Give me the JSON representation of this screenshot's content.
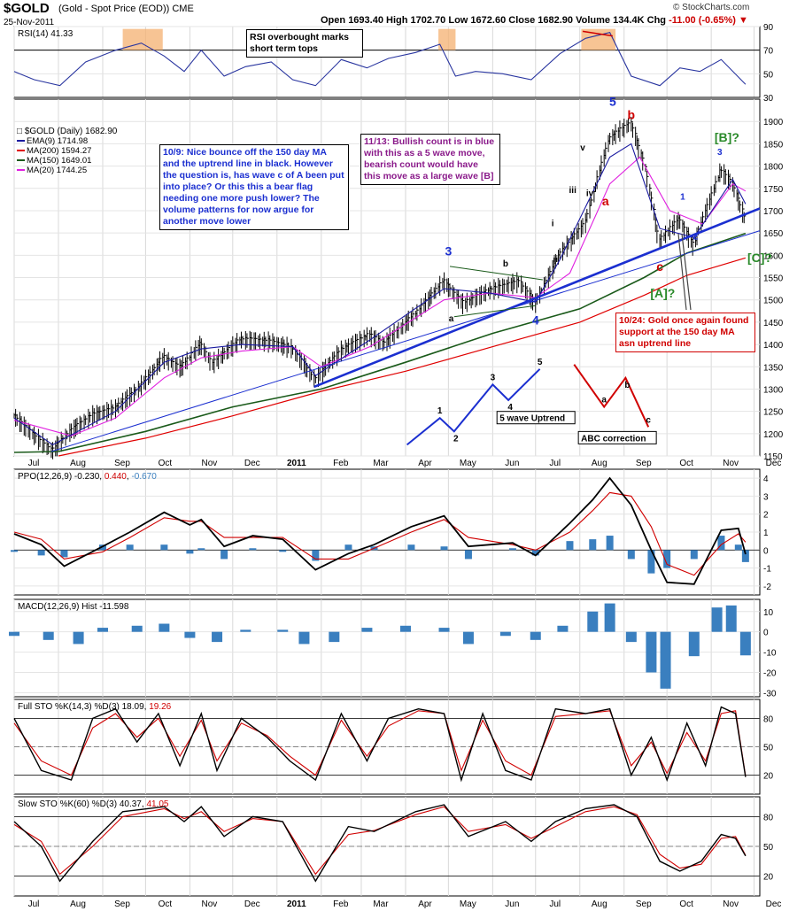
{
  "header": {
    "symbol": "$GOLD",
    "description": "(Gold - Spot Price (EOD))  CME",
    "date": "25-Nov-2011",
    "open_label": "Open",
    "open": "1693.40",
    "high_label": "High",
    "high": "1702.70",
    "low_label": "Low",
    "low": "1672.60",
    "close_label": "Close",
    "close": "1682.90",
    "volume_label": "Volume",
    "volume": "134.4K",
    "chg_label": "Chg",
    "chg": "-11.00 (-0.65%)",
    "copyright": "© StockCharts.com"
  },
  "colors": {
    "price_bars": "#000000",
    "ema9": "#1a1aa0",
    "ma200": "#e00000",
    "ma150": "#1a5a1a",
    "ma20": "#e020e0",
    "trendline": "#1b2fd0",
    "rsi": "#2a36a0",
    "ppo_line": "#000000",
    "ppo_signal": "#d00000",
    "histogram": "#3a7fbf",
    "sto_k": "#000000",
    "sto_d": "#d00000",
    "bullish_count": "#1b2fd0",
    "bearish_count": "#d00000",
    "alt_count": "#2a8a2a",
    "highlight_box": "#f4b070"
  },
  "chart_data": {
    "type": "line",
    "x_axis": {
      "months": [
        "Jul",
        "Aug",
        "Sep",
        "Oct",
        "Nov",
        "Dec",
        "2011",
        "Feb",
        "Mar",
        "Apr",
        "May",
        "Jun",
        "Jul",
        "Aug",
        "Sep",
        "Oct",
        "Nov",
        "Dec"
      ],
      "range": [
        "2010-07-01",
        "2011-12-05"
      ]
    },
    "rsi_panel": {
      "label": "RSI(14) 41.33",
      "ylim": [
        30,
        90
      ],
      "ticks": [
        90,
        70,
        50,
        30
      ],
      "x": [
        "2010-07-01",
        "2010-07-15",
        "2010-08-02",
        "2010-08-20",
        "2010-09-10",
        "2010-09-28",
        "2010-10-14",
        "2010-10-28",
        "2010-11-09",
        "2010-11-25",
        "2010-12-10",
        "2010-12-28",
        "2011-01-12",
        "2011-01-28",
        "2011-02-15",
        "2011-03-05",
        "2011-03-20",
        "2011-04-08",
        "2011-04-25",
        "2011-05-06",
        "2011-05-20",
        "2011-06-08",
        "2011-06-28",
        "2011-07-18",
        "2011-08-05",
        "2011-08-22",
        "2011-09-06",
        "2011-09-26",
        "2011-10-10",
        "2011-10-24",
        "2011-11-08",
        "2011-11-25"
      ],
      "values": [
        52,
        45,
        40,
        60,
        70,
        76,
        65,
        52,
        70,
        48,
        56,
        60,
        45,
        40,
        62,
        55,
        63,
        68,
        75,
        48,
        52,
        50,
        45,
        67,
        80,
        85,
        48,
        40,
        55,
        52,
        62,
        41
      ]
    },
    "price_panel": {
      "title": "$GOLD (Daily) 1682.90",
      "ylim": [
        1150,
        1950
      ],
      "ticks": [
        1150,
        1200,
        1250,
        1300,
        1350,
        1400,
        1450,
        1500,
        1550,
        1600,
        1650,
        1700,
        1750,
        1800,
        1850,
        1900
      ],
      "legend": [
        {
          "label": "EMA(9) 1714.98",
          "color": "#1a1aa0"
        },
        {
          "label": "MA(200) 1594.27",
          "color": "#e00000"
        },
        {
          "label": "MA(150) 1649.01",
          "color": "#1a5a1a"
        },
        {
          "label": "MA(20) 1744.25",
          "color": "#e020e0"
        }
      ],
      "close": {
        "x": [
          "2010-07-01",
          "2010-07-12",
          "2010-07-28",
          "2010-08-10",
          "2010-08-25",
          "2010-09-10",
          "2010-09-28",
          "2010-10-14",
          "2010-10-26",
          "2010-11-09",
          "2010-11-17",
          "2010-12-07",
          "2010-12-28",
          "2011-01-12",
          "2011-01-28",
          "2011-02-15",
          "2011-03-07",
          "2011-03-17",
          "2011-04-08",
          "2011-04-28",
          "2011-05-12",
          "2011-05-30",
          "2011-06-20",
          "2011-07-01",
          "2011-07-18",
          "2011-08-05",
          "2011-08-22",
          "2011-09-06",
          "2011-09-16",
          "2011-09-26",
          "2011-10-10",
          "2011-10-20",
          "2011-11-08",
          "2011-11-16",
          "2011-11-25"
        ],
        "values": [
          1240,
          1205,
          1160,
          1205,
          1240,
          1255,
          1305,
          1370,
          1345,
          1400,
          1355,
          1410,
          1405,
          1390,
          1320,
          1385,
          1420,
          1400,
          1465,
          1540,
          1490,
          1520,
          1540,
          1490,
          1600,
          1670,
          1860,
          1895,
          1800,
          1630,
          1680,
          1620,
          1790,
          1760,
          1683
        ]
      },
      "ema9": {
        "x": [
          "2010-07-01",
          "2010-07-28",
          "2010-09-10",
          "2010-10-14",
          "2010-11-09",
          "2010-12-07",
          "2011-01-12",
          "2011-01-28",
          "2011-03-07",
          "2011-04-28",
          "2011-05-30",
          "2011-07-01",
          "2011-07-18",
          "2011-08-22",
          "2011-09-06",
          "2011-09-26",
          "2011-10-20",
          "2011-11-16",
          "2011-11-25"
        ],
        "values": [
          1235,
          1175,
          1250,
          1360,
          1390,
          1400,
          1395,
          1330,
          1410,
          1525,
          1515,
          1495,
          1590,
          1820,
          1850,
          1660,
          1640,
          1770,
          1715
        ]
      },
      "ma20": {
        "x": [
          "2010-07-01",
          "2010-08-10",
          "2010-09-10",
          "2010-10-14",
          "2010-11-09",
          "2010-12-07",
          "2011-01-12",
          "2011-02-01",
          "2011-03-07",
          "2011-04-28",
          "2011-05-30",
          "2011-07-01",
          "2011-07-25",
          "2011-08-22",
          "2011-09-12",
          "2011-10-03",
          "2011-10-26",
          "2011-11-16",
          "2011-11-25"
        ],
        "values": [
          1230,
          1195,
          1235,
          1325,
          1370,
          1385,
          1395,
          1350,
          1395,
          1500,
          1515,
          1505,
          1560,
          1760,
          1820,
          1700,
          1670,
          1760,
          1744
        ]
      },
      "ma150": {
        "x": [
          "2010-07-01",
          "2010-08-01",
          "2010-10-01",
          "2010-12-01",
          "2011-02-01",
          "2011-04-01",
          "2011-06-01",
          "2011-08-01",
          "2011-09-15",
          "2011-10-15",
          "2011-11-25"
        ],
        "values": [
          1158,
          1160,
          1205,
          1260,
          1300,
          1360,
          1425,
          1480,
          1550,
          1605,
          1649
        ]
      },
      "ma200": {
        "x": [
          "2010-08-01",
          "2010-10-01",
          "2010-12-01",
          "2011-02-01",
          "2011-04-01",
          "2011-06-01",
          "2011-08-01",
          "2011-09-15",
          "2011-10-15",
          "2011-11-25"
        ],
        "values": [
          1150,
          1190,
          1240,
          1295,
          1340,
          1395,
          1450,
          1510,
          1555,
          1594
        ]
      },
      "trendlines": [
        {
          "name": "thick blue uptrend",
          "x": [
            "2011-01-27",
            "2011-12-05"
          ],
          "values": [
            1305,
            1705
          ]
        },
        {
          "name": "thin blue uptrend",
          "x": [
            "2010-07-27",
            "2011-12-05"
          ],
          "values": [
            1160,
            1655
          ]
        },
        {
          "name": "green triangle top",
          "x": [
            "2011-05-02",
            "2011-07-06"
          ],
          "values": [
            1575,
            1545
          ]
        },
        {
          "name": "green triangle bottom",
          "x": [
            "2011-05-05",
            "2011-07-01"
          ],
          "values": [
            1462,
            1487
          ]
        }
      ],
      "wave_labels": [
        {
          "text": "3",
          "x": "2011-05-01",
          "y": 1600,
          "color": "#1b2fd0",
          "big": true
        },
        {
          "text": "4",
          "x": "2011-07-01",
          "y": 1445,
          "color": "#1b2fd0",
          "big": true
        },
        {
          "text": "5",
          "x": "2011-08-24",
          "y": 1935,
          "color": "#1b2fd0",
          "big": true
        },
        {
          "text": "a",
          "x": "2011-05-03",
          "y": 1452,
          "color": "#000000"
        },
        {
          "text": "b",
          "x": "2011-06-10",
          "y": 1575,
          "color": "#000000"
        },
        {
          "text": "i",
          "x": "2011-07-13",
          "y": 1665,
          "color": "#000000"
        },
        {
          "text": "ii",
          "x": "2011-07-15",
          "y": 1585,
          "color": "#000000"
        },
        {
          "text": "iii",
          "x": "2011-07-27",
          "y": 1740,
          "color": "#000000"
        },
        {
          "text": "iv",
          "x": "2011-08-08",
          "y": 1733,
          "color": "#000000"
        },
        {
          "text": "v",
          "x": "2011-08-03",
          "y": 1835,
          "color": "#000000"
        },
        {
          "text": "a",
          "x": "2011-08-19",
          "y": 1712,
          "color": "#d00000",
          "big": true
        },
        {
          "text": "b",
          "x": "2011-09-06",
          "y": 1905,
          "color": "#d00000",
          "big": true
        },
        {
          "text": "c",
          "x": "2011-09-26",
          "y": 1565,
          "color": "#d00000",
          "big": true
        },
        {
          "text": "1",
          "x": "2011-10-12",
          "y": 1725,
          "color": "#1b2fd0"
        },
        {
          "text": "2",
          "x": "2011-10-21",
          "y": 1635,
          "color": "#1b2fd0"
        },
        {
          "text": "3",
          "x": "2011-11-07",
          "y": 1825,
          "color": "#1b2fd0"
        },
        {
          "text": "[B]?",
          "x": "2011-11-12",
          "y": 1855,
          "color": "#2a8a2a",
          "big": true
        },
        {
          "text": "[A]?",
          "x": "2011-09-28",
          "y": 1505,
          "color": "#2a8a2a",
          "big": true
        },
        {
          "text": "[C]?",
          "x": "2011-12-05",
          "y": 1585,
          "color": "#2a8a2a",
          "big": true
        }
      ],
      "uptrend_diagram": {
        "caption": "5 wave Uptrend",
        "x": [
          "2011-04-02",
          "2011-04-25",
          "2011-05-05",
          "2011-06-01",
          "2011-06-12",
          "2011-07-04"
        ],
        "values": [
          1175,
          1235,
          1205,
          1310,
          1275,
          1345
        ],
        "labels": [
          "",
          "1",
          "2",
          "3",
          "4",
          "5"
        ]
      },
      "abc_diagram": {
        "caption": "ABC correction",
        "x": [
          "2011-07-28",
          "2011-08-18",
          "2011-09-02",
          "2011-09-18"
        ],
        "values": [
          1355,
          1260,
          1325,
          1215
        ],
        "labels": [
          "",
          "a",
          "b",
          "c"
        ]
      }
    },
    "ppo_panel": {
      "label": "PPO(12,26,9)",
      "values_text": [
        "-0.230",
        "0.440",
        "-0.670"
      ],
      "ylim": [
        -2.5,
        4.5
      ],
      "ticks": [
        4,
        3,
        2,
        1,
        0,
        -1,
        -2
      ],
      "x": [
        "2010-07-01",
        "2010-07-20",
        "2010-08-05",
        "2010-09-01",
        "2010-09-20",
        "2010-10-14",
        "2010-11-01",
        "2010-11-09",
        "2010-11-25",
        "2010-12-15",
        "2011-01-05",
        "2011-01-28",
        "2011-02-20",
        "2011-03-10",
        "2011-04-05",
        "2011-04-28",
        "2011-05-15",
        "2011-06-15",
        "2011-07-01",
        "2011-07-25",
        "2011-08-10",
        "2011-08-22",
        "2011-09-06",
        "2011-09-20",
        "2011-10-01",
        "2011-10-20",
        "2011-11-08",
        "2011-11-20",
        "2011-11-25"
      ],
      "line": [
        0.9,
        0.3,
        -0.9,
        0.2,
        1.0,
        2.1,
        1.4,
        1.7,
        0.2,
        0.8,
        0.6,
        -1.1,
        -0.2,
        0.3,
        1.3,
        1.9,
        0.2,
        0.4,
        -0.3,
        1.5,
        2.8,
        4.0,
        2.5,
        0.0,
        -1.8,
        -1.9,
        1.1,
        1.2,
        -0.23
      ],
      "signal": [
        1.0,
        0.6,
        -0.5,
        -0.1,
        0.7,
        1.8,
        1.6,
        1.6,
        0.7,
        0.7,
        0.7,
        -0.5,
        -0.5,
        0.1,
        1.0,
        1.7,
        0.7,
        0.3,
        0.0,
        1.0,
        2.2,
        3.2,
        3.0,
        1.3,
        -0.8,
        -1.4,
        0.3,
        0.9,
        0.44
      ],
      "histogram": [
        -0.1,
        -0.3,
        -0.4,
        0.3,
        0.3,
        0.3,
        -0.2,
        0.1,
        -0.5,
        0.1,
        -0.1,
        -0.6,
        0.3,
        0.2,
        0.3,
        0.2,
        -0.5,
        0.1,
        -0.3,
        0.5,
        0.6,
        0.8,
        -0.5,
        -1.3,
        -1.0,
        -0.5,
        0.8,
        0.3,
        -0.67
      ]
    },
    "macd_panel": {
      "label": "MACD(12,26,9) Hist -11.598",
      "ylim": [
        -32,
        16
      ],
      "ticks": [
        10,
        0,
        -10,
        -20,
        -30
      ],
      "x": [
        "2010-07-01",
        "2010-07-25",
        "2010-08-15",
        "2010-09-01",
        "2010-09-25",
        "2010-10-14",
        "2010-11-01",
        "2010-11-20",
        "2010-12-10",
        "2011-01-05",
        "2011-01-20",
        "2011-02-10",
        "2011-03-05",
        "2011-04-01",
        "2011-04-28",
        "2011-05-15",
        "2011-06-10",
        "2011-07-01",
        "2011-07-20",
        "2011-08-10",
        "2011-08-22",
        "2011-09-06",
        "2011-09-20",
        "2011-09-30",
        "2011-10-20",
        "2011-11-05",
        "2011-11-15",
        "2011-11-25"
      ],
      "values": [
        -2,
        -4,
        -6,
        2,
        3,
        4,
        -3,
        -5,
        1,
        1,
        -6,
        -5,
        2,
        3,
        2,
        -6,
        -2,
        -4,
        3,
        10,
        14,
        -5,
        -20,
        -28,
        -12,
        12,
        13,
        -11.6
      ]
    },
    "full_sto_panel": {
      "label": "Full STO %K(14,3) %D(3)",
      "values_text": [
        "18.09",
        "19.26"
      ],
      "ylim": [
        0,
        100
      ],
      "ticks": [
        80,
        50,
        20
      ],
      "x": [
        "2010-07-01",
        "2010-07-20",
        "2010-08-10",
        "2010-08-25",
        "2010-09-10",
        "2010-09-25",
        "2010-10-10",
        "2010-10-25",
        "2010-11-09",
        "2010-11-20",
        "2010-12-07",
        "2010-12-25",
        "2011-01-10",
        "2011-01-28",
        "2011-02-15",
        "2011-03-05",
        "2011-03-20",
        "2011-04-10",
        "2011-04-28",
        "2011-05-10",
        "2011-05-25",
        "2011-06-10",
        "2011-06-28",
        "2011-07-15",
        "2011-08-05",
        "2011-08-22",
        "2011-09-06",
        "2011-09-20",
        "2011-10-01",
        "2011-10-15",
        "2011-10-28",
        "2011-11-08",
        "2011-11-18",
        "2011-11-25"
      ],
      "k": [
        80,
        25,
        15,
        80,
        90,
        55,
        85,
        30,
        85,
        25,
        80,
        60,
        35,
        15,
        85,
        35,
        80,
        90,
        85,
        15,
        85,
        25,
        15,
        90,
        85,
        90,
        20,
        60,
        15,
        75,
        30,
        92,
        85,
        18.09
      ],
      "d": [
        75,
        35,
        20,
        70,
        85,
        60,
        80,
        40,
        78,
        35,
        75,
        62,
        40,
        20,
        78,
        40,
        72,
        88,
        85,
        25,
        78,
        35,
        20,
        82,
        85,
        88,
        30,
        55,
        22,
        65,
        35,
        85,
        88,
        19.26
      ]
    },
    "slow_sto_panel": {
      "label": "Slow STO %K(60) %D(3)",
      "values_text": [
        "40.37",
        "41.05"
      ],
      "ylim": [
        0,
        100
      ],
      "ticks": [
        80,
        50,
        20
      ],
      "x": [
        "2010-07-01",
        "2010-07-20",
        "2010-08-02",
        "2010-08-25",
        "2010-09-15",
        "2010-10-14",
        "2010-10-28",
        "2010-11-09",
        "2010-11-25",
        "2010-12-15",
        "2011-01-05",
        "2011-01-28",
        "2011-02-20",
        "2011-03-10",
        "2011-04-08",
        "2011-04-28",
        "2011-05-15",
        "2011-06-10",
        "2011-06-28",
        "2011-07-15",
        "2011-08-05",
        "2011-08-25",
        "2011-09-10",
        "2011-09-26",
        "2011-10-10",
        "2011-10-25",
        "2011-11-08",
        "2011-11-18",
        "2011-11-25"
      ],
      "k": [
        75,
        50,
        15,
        55,
        85,
        90,
        75,
        90,
        60,
        80,
        75,
        15,
        70,
        65,
        85,
        92,
        60,
        75,
        55,
        75,
        88,
        92,
        80,
        35,
        25,
        35,
        62,
        58,
        40.37
      ],
      "d": [
        72,
        55,
        22,
        50,
        80,
        88,
        78,
        85,
        65,
        78,
        75,
        22,
        62,
        66,
        82,
        90,
        65,
        72,
        58,
        70,
        85,
        90,
        82,
        42,
        28,
        32,
        58,
        60,
        41.05
      ]
    }
  },
  "annotations": {
    "rsi_note": "RSI overbought marks\nshort term tops",
    "note_1009": "10/9: Nice bounce off the 150 day MA and the uptrend line in black. However the question is, has wave c of A been put into place? Or this this a bear flag needing one more push lower?  The volume patterns for now argue for another move lower",
    "note_1113": "11/13: Bullish count is in blue with this as a 5 wave move, bearish count would have this move as a large wave [B]",
    "note_1024": "10/24: Gold once again found support at the 150 day MA asn uptrend line"
  }
}
